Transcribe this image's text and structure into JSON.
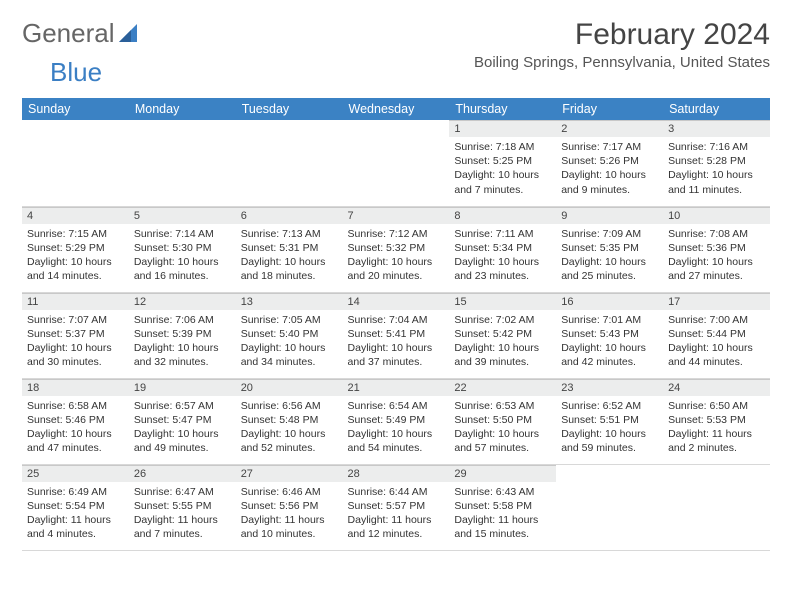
{
  "logo": {
    "text1": "General",
    "text2": "Blue"
  },
  "title": "February 2024",
  "location": "Boiling Springs, Pennsylvania, United States",
  "colors": {
    "header_bg": "#3b82c4",
    "header_fg": "#ffffff",
    "daynum_bg": "#eceded",
    "logo_blue": "#3b7fc4"
  },
  "weekdays": [
    "Sunday",
    "Monday",
    "Tuesday",
    "Wednesday",
    "Thursday",
    "Friday",
    "Saturday"
  ],
  "weeks": [
    [
      null,
      null,
      null,
      null,
      {
        "n": "1",
        "sunrise": "7:18 AM",
        "sunset": "5:25 PM",
        "daylight": "10 hours and 7 minutes."
      },
      {
        "n": "2",
        "sunrise": "7:17 AM",
        "sunset": "5:26 PM",
        "daylight": "10 hours and 9 minutes."
      },
      {
        "n": "3",
        "sunrise": "7:16 AM",
        "sunset": "5:28 PM",
        "daylight": "10 hours and 11 minutes."
      }
    ],
    [
      {
        "n": "4",
        "sunrise": "7:15 AM",
        "sunset": "5:29 PM",
        "daylight": "10 hours and 14 minutes."
      },
      {
        "n": "5",
        "sunrise": "7:14 AM",
        "sunset": "5:30 PM",
        "daylight": "10 hours and 16 minutes."
      },
      {
        "n": "6",
        "sunrise": "7:13 AM",
        "sunset": "5:31 PM",
        "daylight": "10 hours and 18 minutes."
      },
      {
        "n": "7",
        "sunrise": "7:12 AM",
        "sunset": "5:32 PM",
        "daylight": "10 hours and 20 minutes."
      },
      {
        "n": "8",
        "sunrise": "7:11 AM",
        "sunset": "5:34 PM",
        "daylight": "10 hours and 23 minutes."
      },
      {
        "n": "9",
        "sunrise": "7:09 AM",
        "sunset": "5:35 PM",
        "daylight": "10 hours and 25 minutes."
      },
      {
        "n": "10",
        "sunrise": "7:08 AM",
        "sunset": "5:36 PM",
        "daylight": "10 hours and 27 minutes."
      }
    ],
    [
      {
        "n": "11",
        "sunrise": "7:07 AM",
        "sunset": "5:37 PM",
        "daylight": "10 hours and 30 minutes."
      },
      {
        "n": "12",
        "sunrise": "7:06 AM",
        "sunset": "5:39 PM",
        "daylight": "10 hours and 32 minutes."
      },
      {
        "n": "13",
        "sunrise": "7:05 AM",
        "sunset": "5:40 PM",
        "daylight": "10 hours and 34 minutes."
      },
      {
        "n": "14",
        "sunrise": "7:04 AM",
        "sunset": "5:41 PM",
        "daylight": "10 hours and 37 minutes."
      },
      {
        "n": "15",
        "sunrise": "7:02 AM",
        "sunset": "5:42 PM",
        "daylight": "10 hours and 39 minutes."
      },
      {
        "n": "16",
        "sunrise": "7:01 AM",
        "sunset": "5:43 PM",
        "daylight": "10 hours and 42 minutes."
      },
      {
        "n": "17",
        "sunrise": "7:00 AM",
        "sunset": "5:44 PM",
        "daylight": "10 hours and 44 minutes."
      }
    ],
    [
      {
        "n": "18",
        "sunrise": "6:58 AM",
        "sunset": "5:46 PM",
        "daylight": "10 hours and 47 minutes."
      },
      {
        "n": "19",
        "sunrise": "6:57 AM",
        "sunset": "5:47 PM",
        "daylight": "10 hours and 49 minutes."
      },
      {
        "n": "20",
        "sunrise": "6:56 AM",
        "sunset": "5:48 PM",
        "daylight": "10 hours and 52 minutes."
      },
      {
        "n": "21",
        "sunrise": "6:54 AM",
        "sunset": "5:49 PM",
        "daylight": "10 hours and 54 minutes."
      },
      {
        "n": "22",
        "sunrise": "6:53 AM",
        "sunset": "5:50 PM",
        "daylight": "10 hours and 57 minutes."
      },
      {
        "n": "23",
        "sunrise": "6:52 AM",
        "sunset": "5:51 PM",
        "daylight": "10 hours and 59 minutes."
      },
      {
        "n": "24",
        "sunrise": "6:50 AM",
        "sunset": "5:53 PM",
        "daylight": "11 hours and 2 minutes."
      }
    ],
    [
      {
        "n": "25",
        "sunrise": "6:49 AM",
        "sunset": "5:54 PM",
        "daylight": "11 hours and 4 minutes."
      },
      {
        "n": "26",
        "sunrise": "6:47 AM",
        "sunset": "5:55 PM",
        "daylight": "11 hours and 7 minutes."
      },
      {
        "n": "27",
        "sunrise": "6:46 AM",
        "sunset": "5:56 PM",
        "daylight": "11 hours and 10 minutes."
      },
      {
        "n": "28",
        "sunrise": "6:44 AM",
        "sunset": "5:57 PM",
        "daylight": "11 hours and 12 minutes."
      },
      {
        "n": "29",
        "sunrise": "6:43 AM",
        "sunset": "5:58 PM",
        "daylight": "11 hours and 15 minutes."
      },
      null,
      null
    ]
  ],
  "labels": {
    "sunrise": "Sunrise:",
    "sunset": "Sunset:",
    "daylight": "Daylight:"
  }
}
